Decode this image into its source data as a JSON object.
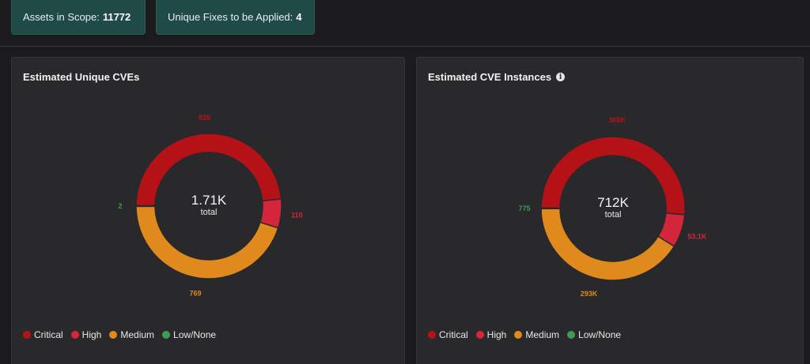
{
  "summary": {
    "assets_label": "Assets in Scope:",
    "assets_value": "11772",
    "fixes_label": "Unique Fixes to be Applied:",
    "fixes_value": "4"
  },
  "colors": {
    "critical": "#b51218",
    "high": "#d3263a",
    "medium": "#e08a1e",
    "low": "#3f9a54"
  },
  "chart_data": [
    {
      "type": "pie",
      "title": "Estimated Unique CVEs",
      "center_value": "1.71K",
      "center_label": "total",
      "categories": [
        "Critical",
        "High",
        "Medium",
        "Low/None"
      ],
      "values": [
        826,
        110,
        769,
        2
      ],
      "value_labels": [
        "826",
        "110",
        "769",
        "2"
      ],
      "legend": [
        "Critical",
        "High",
        "Medium",
        "Low/None"
      ],
      "legend_position": "bottom-left"
    },
    {
      "type": "pie",
      "title": "Estimated CVE Instances",
      "center_value": "712K",
      "center_label": "total",
      "categories": [
        "Critical",
        "High",
        "Medium",
        "Low/None"
      ],
      "values": [
        366000,
        53100,
        293000,
        775
      ],
      "value_labels": [
        "366K",
        "53.1K",
        "293K",
        "775"
      ],
      "legend": [
        "Critical",
        "High",
        "Medium",
        "Low/None"
      ],
      "legend_position": "bottom-left"
    }
  ]
}
